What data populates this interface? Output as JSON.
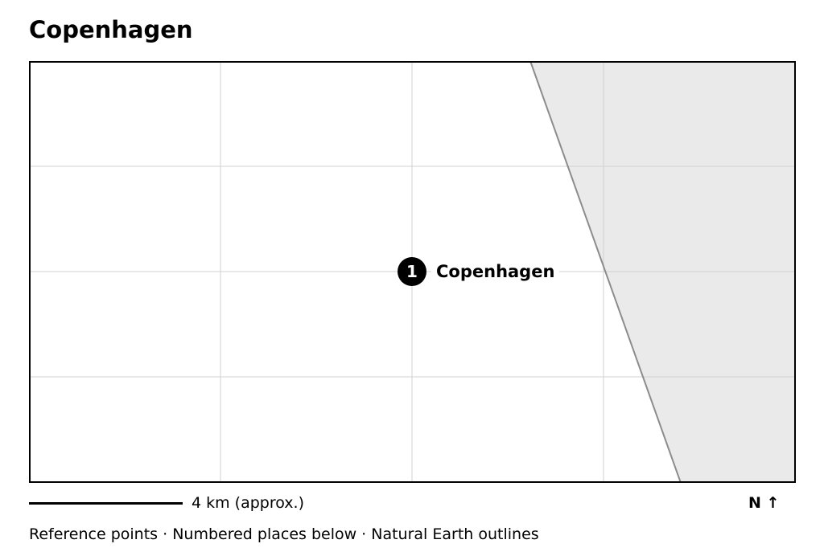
{
  "map": {
    "title": "Copenhagen",
    "places": [
      {
        "number": "1",
        "name": "Copenhagen"
      }
    ],
    "scale_label": "4 km (approx.)",
    "north_label": "N ↑",
    "attribution": "Reference points · Numbered places below · Natural Earth outlines",
    "colors": {
      "land": "#ffffff",
      "water": "#eaeaea",
      "coastline": "#8c8c8c",
      "grid": "#d0d0d0",
      "frame": "#000000",
      "marker": "#000000",
      "marker_text": "#ffffff"
    }
  }
}
